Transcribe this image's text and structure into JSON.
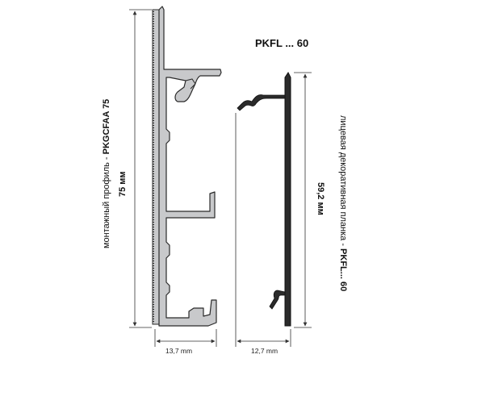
{
  "title": "PKFL ... 60",
  "mounting_profile": {
    "prefix": "монтажный профиль - ",
    "code": "PKGCFAA 75",
    "height": "75 мм",
    "width": "13,7 mm"
  },
  "face_strip": {
    "prefix": "лицевая декоративная планка - ",
    "code": "PKFL... 60",
    "height": "59,2 мм",
    "width": "12,7 mm"
  },
  "colors": {
    "profile_fill": "#c8c9cb",
    "profile_stroke": "#2a2a2a",
    "strip_fill": "#2b2b2b",
    "dimension_line": "#333333"
  }
}
